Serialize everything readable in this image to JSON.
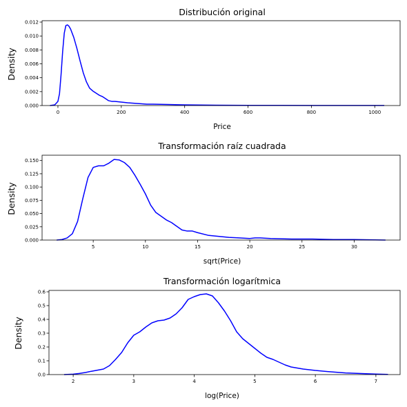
{
  "chart_data": [
    {
      "type": "line",
      "title": "Distribución original",
      "xlabel": "Price",
      "ylabel": "Density",
      "xlim": [
        -50,
        1080
      ],
      "ylim": [
        0,
        0.0122
      ],
      "xticks": [
        0,
        200,
        400,
        600,
        800,
        1000
      ],
      "xtick_labels": [
        "0",
        "200",
        "400",
        "600",
        "800",
        "1000"
      ],
      "yticks": [
        0,
        0.002,
        0.004,
        0.006,
        0.008,
        0.01,
        0.012
      ],
      "ytick_labels": [
        "0.000",
        "0.002",
        "0.004",
        "0.006",
        "0.008",
        "0.010",
        "0.012"
      ],
      "grid": false,
      "series": [
        {
          "color": "#0000ff",
          "x": [
            -25,
            -10,
            0,
            5,
            10,
            15,
            20,
            25,
            30,
            35,
            40,
            50,
            60,
            70,
            80,
            90,
            100,
            110,
            120,
            130,
            140,
            150,
            160,
            170,
            180,
            200,
            220,
            250,
            280,
            300,
            350,
            400,
            450,
            500,
            600,
            700,
            800,
            900,
            1000,
            1030
          ],
          "y": [
            0,
            0.0001,
            0.0006,
            0.0017,
            0.0045,
            0.0078,
            0.0104,
            0.0115,
            0.0116,
            0.0114,
            0.011,
            0.0098,
            0.0082,
            0.0064,
            0.0047,
            0.0034,
            0.0025,
            0.0021,
            0.0018,
            0.0015,
            0.0013,
            0.001,
            0.0007,
            0.0006,
            0.0006,
            0.0005,
            0.0004,
            0.0003,
            0.0002,
            0.0002,
            0.00015,
            0.0001,
            8e-05,
            5e-05,
            3e-05,
            2e-05,
            1e-05,
            1e-05,
            1e-05,
            1e-05
          ]
        }
      ]
    },
    {
      "type": "line",
      "title": "Transformación raíz cuadrada",
      "xlabel": "sqrt(Price)",
      "ylabel": "Density",
      "xlim": [
        0.1,
        34.4
      ],
      "ylim": [
        0,
        0.16
      ],
      "xticks": [
        5,
        10,
        15,
        20,
        25,
        30
      ],
      "xtick_labels": [
        "5",
        "10",
        "15",
        "20",
        "25",
        "30"
      ],
      "yticks": [
        0,
        0.025,
        0.05,
        0.075,
        0.1,
        0.125,
        0.15
      ],
      "ytick_labels": [
        "0.000",
        "0.025",
        "0.050",
        "0.075",
        "0.100",
        "0.125",
        "0.150"
      ],
      "grid": false,
      "series": [
        {
          "color": "#0000ff",
          "x": [
            1.5,
            2.0,
            2.5,
            3.0,
            3.5,
            4.0,
            4.5,
            5.0,
            5.5,
            6.0,
            6.5,
            7.0,
            7.5,
            8.0,
            8.5,
            9.0,
            9.5,
            10.0,
            10.5,
            11.0,
            11.5,
            12.0,
            12.5,
            13.0,
            13.5,
            14.0,
            14.5,
            15.0,
            16.0,
            17.0,
            18.0,
            19.0,
            20.0,
            20.5,
            21.0,
            22.0,
            24.0,
            26.0,
            28.0,
            30.0,
            33.0
          ],
          "y": [
            0,
            0.001,
            0.004,
            0.012,
            0.035,
            0.078,
            0.118,
            0.137,
            0.14,
            0.14,
            0.145,
            0.152,
            0.151,
            0.146,
            0.137,
            0.122,
            0.105,
            0.087,
            0.066,
            0.052,
            0.045,
            0.038,
            0.033,
            0.026,
            0.019,
            0.017,
            0.017,
            0.014,
            0.009,
            0.007,
            0.005,
            0.004,
            0.003,
            0.004,
            0.004,
            0.003,
            0.002,
            0.002,
            0.001,
            0.001,
            0.0
          ]
        }
      ]
    },
    {
      "type": "line",
      "title": "Transformación logarítmica",
      "xlabel": "log(Price)",
      "ylabel": "Density",
      "xlim": [
        1.6,
        7.4
      ],
      "ylim": [
        0,
        0.61
      ],
      "xticks": [
        2,
        3,
        4,
        5,
        6,
        7
      ],
      "xtick_labels": [
        "2",
        "3",
        "4",
        "5",
        "6",
        "7"
      ],
      "yticks": [
        0,
        0.1,
        0.2,
        0.3,
        0.4,
        0.5,
        0.6
      ],
      "ytick_labels": [
        "0.0",
        "0.1",
        "0.2",
        "0.3",
        "0.4",
        "0.5",
        "0.6"
      ],
      "grid": false,
      "series": [
        {
          "color": "#0000ff",
          "x": [
            1.85,
            2.0,
            2.1,
            2.2,
            2.3,
            2.4,
            2.5,
            2.6,
            2.7,
            2.8,
            2.9,
            3.0,
            3.1,
            3.2,
            3.3,
            3.4,
            3.5,
            3.6,
            3.7,
            3.8,
            3.9,
            4.0,
            4.1,
            4.2,
            4.3,
            4.4,
            4.5,
            4.6,
            4.7,
            4.8,
            4.9,
            5.0,
            5.1,
            5.2,
            5.3,
            5.4,
            5.5,
            5.6,
            5.8,
            6.0,
            6.2,
            6.5,
            6.8,
            7.0,
            7.2
          ],
          "y": [
            0,
            0.003,
            0.008,
            0.015,
            0.024,
            0.032,
            0.04,
            0.065,
            0.11,
            0.16,
            0.23,
            0.285,
            0.31,
            0.345,
            0.375,
            0.39,
            0.395,
            0.41,
            0.44,
            0.485,
            0.545,
            0.565,
            0.58,
            0.585,
            0.57,
            0.52,
            0.46,
            0.39,
            0.31,
            0.26,
            0.225,
            0.19,
            0.155,
            0.125,
            0.11,
            0.09,
            0.07,
            0.055,
            0.04,
            0.03,
            0.022,
            0.012,
            0.007,
            0.004,
            0.001
          ]
        }
      ]
    }
  ]
}
